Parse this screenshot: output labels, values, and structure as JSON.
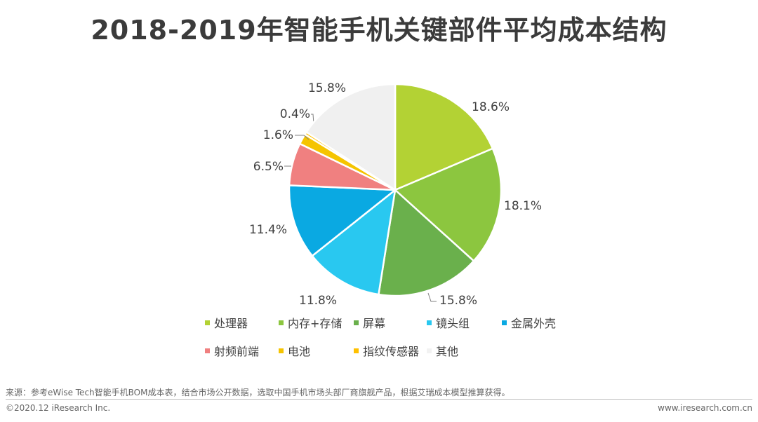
{
  "title": "2018-2019年智能手机关键部件平均成本结构",
  "chart_data": {
    "type": "pie",
    "title": "2018-2019年智能手机关键部件平均成本结构",
    "slices": [
      {
        "label": "处理器",
        "value": 18.6,
        "display": "18.6%",
        "color": "#b3d234"
      },
      {
        "label": "内存+存储",
        "value": 18.1,
        "display": "18.1%",
        "color": "#8cc63f"
      },
      {
        "label": "屏幕",
        "value": 15.8,
        "display": "15.8%",
        "color": "#6ab04c"
      },
      {
        "label": "镜头组",
        "value": 11.8,
        "display": "11.8%",
        "color": "#29c8f0"
      },
      {
        "label": "金属外壳",
        "value": 11.4,
        "display": "11.4%",
        "color": "#0aa9e2"
      },
      {
        "label": "射频前端",
        "value": 6.5,
        "display": "6.5%",
        "color": "#f08080"
      },
      {
        "label": "电池",
        "value": 1.6,
        "display": "1.6%",
        "color": "#f5c400"
      },
      {
        "label": "指纹传感器",
        "value": 0.4,
        "display": "0.4%",
        "color": "#ffc000"
      },
      {
        "label": "其他",
        "value": 15.8,
        "display": "15.8%",
        "color": "#f0f0f0"
      }
    ],
    "legend_position": "bottom"
  },
  "legend": [
    [
      "处理器",
      "内存+存储",
      "屏幕",
      "镜头组",
      "金属外壳"
    ],
    [
      "射频前端",
      "电池",
      "指纹传感器",
      "其他"
    ]
  ],
  "footer": {
    "source": "来源：参考eWise Tech智能手机BOM成本表，结合市场公开数据，选取中国手机市场头部厂商旗舰产品，根据艾瑞成本模型推算获得。",
    "copyright": "©2020.12 iResearch Inc.",
    "url": "www.iresearch.com.cn"
  }
}
